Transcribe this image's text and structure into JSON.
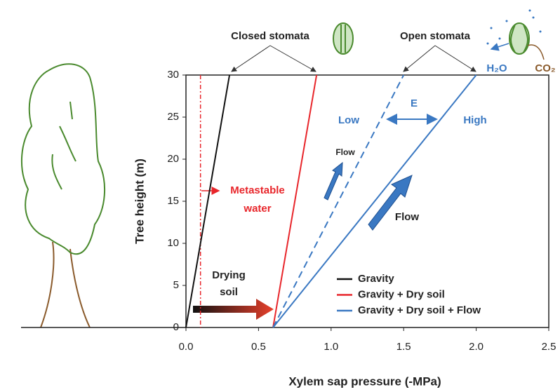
{
  "chart_data": {
    "type": "line",
    "x_label": "Xylem sap pressure (-MPa)",
    "y_label": "Tree height (m)",
    "xlim": [
      0,
      2.5
    ],
    "ylim": [
      0,
      30
    ],
    "xticks": [
      {
        "value": 0,
        "label": "0.0"
      },
      0.5,
      {
        "value": 1,
        "label": "1.0"
      },
      1.5,
      {
        "value": 2,
        "label": "2.0"
      },
      2.5
    ],
    "yticks": [
      0,
      5,
      10,
      15,
      20,
      25,
      30
    ],
    "legend": "lower right",
    "series": [
      {
        "name": "Gravity",
        "color": "#111111",
        "x": [
          0,
          0.3
        ],
        "values": [
          0,
          30
        ]
      },
      {
        "name": "Gravity + Dry soil",
        "color": "#e8262b",
        "x": [
          0.6,
          0.9
        ],
        "values": [
          0,
          30
        ]
      },
      {
        "name": "Gravity + Dry soil + Flow",
        "color": "#3a78c2",
        "x": [
          0.6,
          2.0
        ],
        "values": [
          0,
          30
        ]
      },
      {
        "color": "#3a78c2",
        "dashed": true,
        "x": [
          0.6,
          1.5
        ],
        "values": [
          0,
          30
        ]
      }
    ],
    "reference_lines": [
      {
        "x": 0.1,
        "color": "#e8262b"
      }
    ],
    "annotations": [
      {
        "text": "Closed stomata",
        "color": "#222222"
      },
      {
        "text": "Open stomata",
        "color": "#222222"
      },
      {
        "text": "H₂O",
        "color": "#3a78c2"
      },
      {
        "text": "CO₂",
        "color": "#8a5a2b"
      },
      {
        "text": "Low",
        "color": "#3a78c2"
      },
      {
        "text": "High",
        "color": "#3a78c2"
      },
      {
        "text": "E",
        "color": "#3a78c2"
      },
      {
        "text": "Flow",
        "color": "#222222"
      },
      {
        "text": "Flow",
        "color": "#222222"
      },
      {
        "text": "Metastable",
        "color": "#e8262b"
      },
      {
        "text": "water",
        "color": "#e8262b"
      },
      {
        "text": "Drying",
        "color": "#222222"
      },
      {
        "text": "soil",
        "color": "#222222"
      }
    ]
  }
}
